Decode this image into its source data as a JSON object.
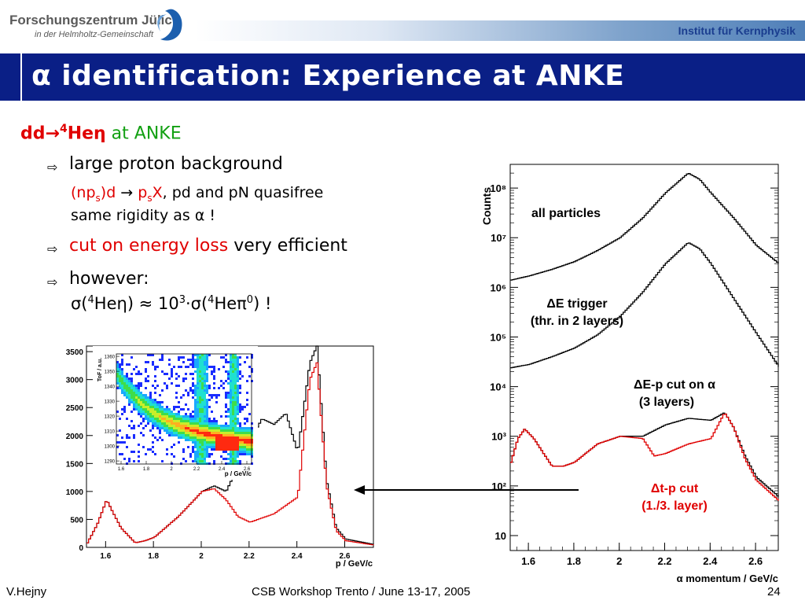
{
  "header": {
    "org_line1": "Forschungszentrum Jülich",
    "org_line2": "in der Helmholtz-Gemeinschaft",
    "institute": "Institut für Kernphysik"
  },
  "title": "α identification: Experience at ANKE",
  "body": {
    "heading_reaction_a": "dd",
    "heading_reaction_b": "→",
    "heading_reaction_sup": "4",
    "heading_reaction_c": "Heη",
    "heading_place": " at ANKE",
    "bullet1": "large proton background",
    "sub1_red_a": "(np",
    "sub1_red_s": "s",
    "sub1_red_b": ")d",
    "sub1_arrow": " → ",
    "sub1_red_c": "p",
    "sub1_red_s2": "s",
    "sub1_red_d": "X",
    "sub1_rest": ", pd and pN quasifree",
    "sub1_line2": "same rigidity as α !",
    "bullet2_red": "cut on energy loss",
    "bullet2_rest": " very efficient",
    "bullet3": "however:",
    "sub3_a": "σ(",
    "sub3_sup1": "4",
    "sub3_b": "Heη) ≈ 10",
    "sub3_sup2": "3",
    "sub3_c": "·σ(",
    "sub3_sup3": "4",
    "sub3_d": "Heπ",
    "sub3_sup4": "0",
    "sub3_e": ") !"
  },
  "footer": {
    "author": "V.Hejny",
    "event": "CSB Workshop Trento / June 13-17, 2005",
    "page": "24"
  },
  "colors": {
    "title_bar": "#0a1f86",
    "red": "#e00000",
    "green": "#12a012"
  },
  "chart_data": [
    {
      "type": "line",
      "log_y": true,
      "ylabel": "Counts",
      "xlabel": "α momentum / GeV/c",
      "x_ticks": [
        "1.6",
        "1.8",
        "2",
        "2.2",
        "2.4",
        "2.6"
      ],
      "y_ticks": [
        "10",
        "10²",
        "10³",
        "10⁴",
        "10⁵",
        "10⁶",
        "10⁷",
        "10⁸"
      ],
      "xlim": [
        1.52,
        2.7
      ],
      "ylim": [
        5,
        300000000
      ],
      "series": [
        {
          "name": "all particles",
          "color": "#000000",
          "x": [
            1.52,
            1.6,
            1.7,
            1.8,
            1.9,
            2.0,
            2.1,
            2.2,
            2.3,
            2.35,
            2.4,
            2.5,
            2.6,
            2.7
          ],
          "y": [
            1400000,
            1700000,
            2300000,
            3300000,
            5500000,
            10000000,
            25000000,
            80000000,
            200000000,
            150000000,
            80000000,
            25000000,
            7000000,
            3000000
          ]
        },
        {
          "name": "ΔE trigger",
          "label2": "(thr. in 2 layers)",
          "color": "#000000",
          "x": [
            1.52,
            1.6,
            1.7,
            1.8,
            1.9,
            2.0,
            2.1,
            2.2,
            2.3,
            2.35,
            2.4,
            2.5,
            2.6,
            2.7
          ],
          "y": [
            24000,
            28000,
            40000,
            60000,
            110000,
            260000,
            800000,
            3000000,
            8000000,
            6000000,
            3000000,
            600000,
            120000,
            25000
          ]
        },
        {
          "name": "ΔE-p cut on α",
          "label2": "(3 layers)",
          "color": "#000000",
          "x": [
            1.52,
            1.55,
            1.58,
            1.62,
            1.7,
            1.75,
            1.8,
            1.9,
            2.0,
            2.1,
            2.2,
            2.3,
            2.4,
            2.46,
            2.5,
            2.55,
            2.6,
            2.7
          ],
          "y": [
            300,
            900,
            1400,
            900,
            250,
            250,
            300,
            700,
            1000,
            1000,
            1700,
            2300,
            2100,
            3000,
            1500,
            400,
            150,
            60
          ]
        },
        {
          "name": "Δt-p cut",
          "label2": "(1./3. layer)",
          "color": "#e00000",
          "x": [
            1.52,
            1.55,
            1.58,
            1.62,
            1.7,
            1.75,
            1.8,
            1.9,
            2.0,
            2.1,
            2.15,
            2.2,
            2.3,
            2.4,
            2.46,
            2.5,
            2.55,
            2.6,
            2.7
          ],
          "y": [
            300,
            900,
            1400,
            900,
            250,
            250,
            300,
            700,
            1000,
            900,
            400,
            450,
            700,
            900,
            3000,
            1500,
            350,
            130,
            50
          ]
        }
      ]
    },
    {
      "type": "line",
      "xlabel": "p / GeV/c",
      "x_ticks": [
        "1.6",
        "1.8",
        "2",
        "2.2",
        "2.4",
        "2.6"
      ],
      "y_ticks": [
        "0",
        "500",
        "1000",
        "1500",
        "2000",
        "2500",
        "3000",
        "3500"
      ],
      "xlim": [
        1.52,
        2.72
      ],
      "ylim": [
        0,
        3600
      ],
      "series": [
        {
          "color": "#000000",
          "x": [
            1.52,
            1.56,
            1.6,
            1.66,
            1.72,
            1.76,
            1.8,
            1.9,
            2.0,
            2.05,
            2.1,
            2.2,
            2.25,
            2.3,
            2.35,
            2.4,
            2.45,
            2.48,
            2.52,
            2.56,
            2.6,
            2.72
          ],
          "y": [
            80,
            400,
            850,
            350,
            80,
            120,
            180,
            550,
            1000,
            1100,
            1000,
            1900,
            2300,
            2200,
            2400,
            1700,
            3300,
            3600,
            1200,
            350,
            150,
            50
          ]
        },
        {
          "color": "#e00000",
          "x": [
            1.52,
            1.56,
            1.6,
            1.66,
            1.72,
            1.76,
            1.8,
            1.9,
            2.0,
            2.05,
            2.1,
            2.15,
            2.2,
            2.3,
            2.4,
            2.45,
            2.48,
            2.52,
            2.56,
            2.6,
            2.72
          ],
          "y": [
            80,
            400,
            850,
            350,
            80,
            120,
            180,
            550,
            1000,
            1050,
            850,
            550,
            450,
            600,
            900,
            3000,
            3300,
            1100,
            300,
            120,
            40
          ]
        }
      ]
    },
    {
      "type": "heatmap",
      "ylabel": "ToF / a.u.",
      "xlabel": "p / GeV/c",
      "x_ticks": [
        "1.6",
        "1.8",
        "2",
        "2.2",
        "2.4",
        "2.6"
      ],
      "y_ticks": [
        "1290",
        "1300",
        "1310",
        "1320",
        "1330",
        "1340",
        "1350",
        "1360"
      ]
    }
  ]
}
